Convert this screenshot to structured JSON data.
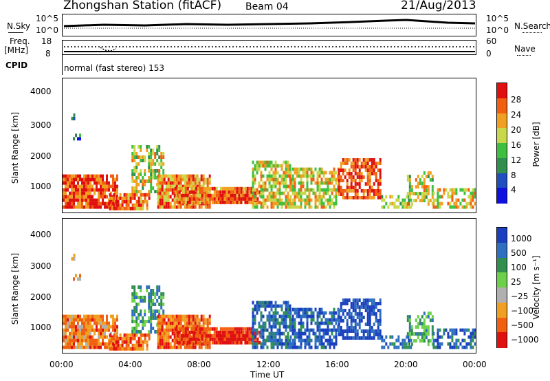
{
  "header": {
    "station": "Zhongshan Station (fitACF)",
    "beam": "Beam 04",
    "date": "21/Aug/2013"
  },
  "sky_panel": {
    "left_label": "N.Sky",
    "right_label": "N.Search",
    "left_ticks": [
      "10^5",
      "10^0"
    ],
    "right_ticks": [
      "10^5",
      "10^0"
    ]
  },
  "freq_panel": {
    "left_label_1": "Freq.",
    "left_label_2": "[MHz]",
    "left_ticks": [
      "18",
      "8"
    ],
    "right_label": "Nave",
    "right_ticks": [
      "60",
      "0"
    ]
  },
  "cpid": {
    "label": "CPID",
    "mode": "normal (fast stereo) 153"
  },
  "colors": {
    "power_scale": [
      "#1010e0",
      "#1f4fbf",
      "#2f8f4f",
      "#3fbf3f",
      "#c8d84a",
      "#f0a020",
      "#f06010",
      "#e01010"
    ],
    "velocity_scale": [
      "#e01010",
      "#f06010",
      "#f0a020",
      "#b0b0b0",
      "#6cd04a",
      "#2f8f4f",
      "#2f6fbf",
      "#1a3fbf"
    ]
  },
  "chart_data": [
    {
      "type": "heatmap",
      "name": "power",
      "ylabel": "Slant Range [km]",
      "yticks": [
        "4000",
        "3000",
        "2000",
        "1000"
      ],
      "ylim": [
        180,
        4500
      ],
      "xlim": [
        "00:00",
        "24:00"
      ],
      "colorbar_label": "Power [dB]",
      "colorbar_ticks": [
        "28",
        "24",
        "20",
        "16",
        "12",
        "8",
        "4"
      ],
      "colorbar_range": [
        0,
        32
      ]
    },
    {
      "type": "heatmap",
      "name": "velocity",
      "ylabel": "Slant Range [km]",
      "yticks": [
        "4000",
        "3000",
        "2000",
        "1000"
      ],
      "ylim": [
        180,
        4500
      ],
      "xlim": [
        "00:00",
        "24:00"
      ],
      "xticks": [
        "00:00",
        "04:00",
        "08:00",
        "12:00",
        "16:00",
        "20:00",
        "00:00"
      ],
      "xlabel": "Time UT",
      "colorbar_label": "Velocity [m s⁻¹]",
      "colorbar_ticks": [
        "1000",
        "500",
        "100",
        "25",
        "−25",
        "−100",
        "−500",
        "−1000"
      ]
    }
  ]
}
